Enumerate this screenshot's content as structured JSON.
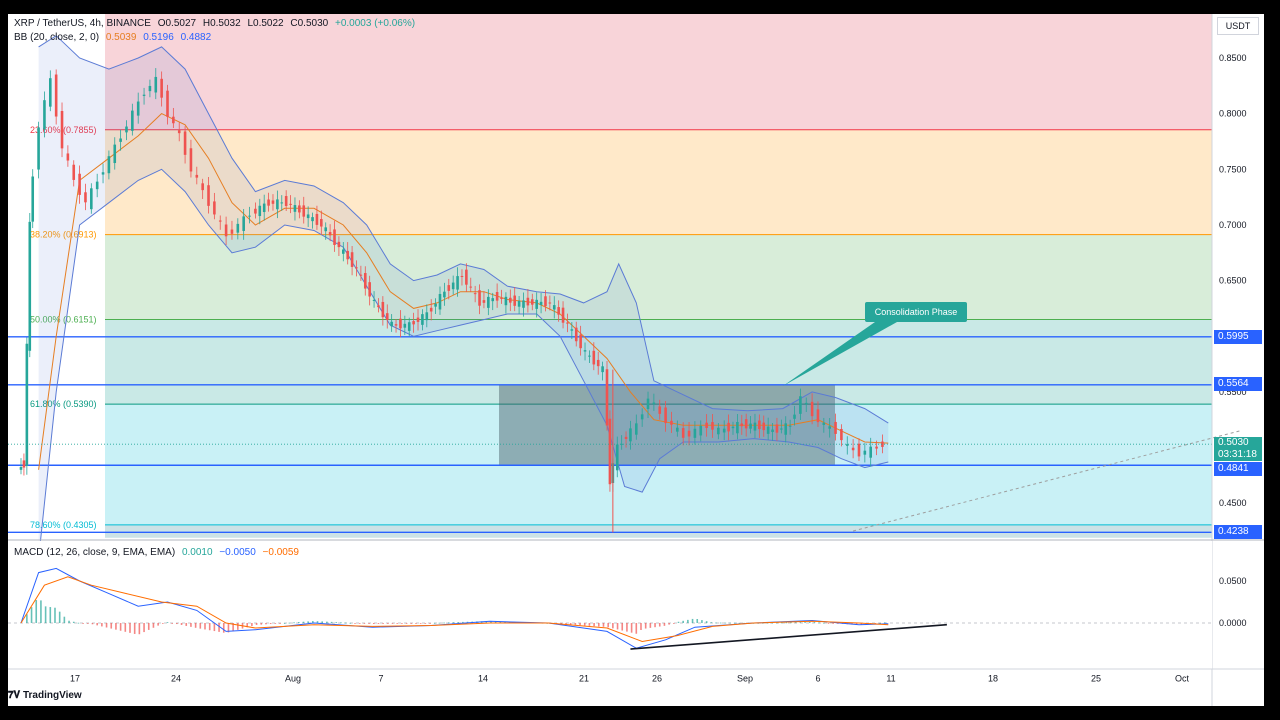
{
  "header": {
    "symbol_line": "XRP / TetherUS, 4h, BINANCE",
    "ohlc": {
      "o": "O0.5027",
      "h": "H0.5032",
      "l": "L0.5022",
      "c": "C0.5030",
      "chg": "+0.0003 (+0.06%)"
    },
    "bb_label": "BB (20, close, 2, 0)",
    "bb_values": [
      "0.5039",
      "0.5196",
      "0.4882"
    ],
    "macd_label": "MACD (12, 26, close, 9, EMA, EMA)",
    "macd_values": [
      "0.0010",
      "−0.0050",
      "−0.0059"
    ]
  },
  "unit": "USDT",
  "annotation": "Consolidation Phase",
  "brand": "TradingView",
  "current_price": {
    "value": "0.5030",
    "countdown": "03:31:18"
  },
  "colors": {
    "up": "#26a69a",
    "down": "#ef5350",
    "level": "#2962ff",
    "bb": "#5b7bd5",
    "basis": "#e67e22",
    "macd": "#2962ff",
    "signal": "#ff6d00"
  },
  "chart_data": {
    "type": "line",
    "x_ticks": [
      "17",
      "24",
      "Aug",
      "7",
      "14",
      "21",
      "26",
      "Sep",
      "6",
      "11",
      "18",
      "25",
      "Oct"
    ],
    "price_ticks": [
      "0.8500",
      "0.8000",
      "0.7500",
      "0.7000",
      "0.6500",
      "0.6000",
      "0.5500",
      "0.4500"
    ],
    "macd_ticks": [
      "0.0500",
      "0.0000"
    ],
    "fib_levels": [
      {
        "label": "23.60% (0.7855)",
        "value": 0.7855,
        "color": "#f23645"
      },
      {
        "label": "38.20% (0.6913)",
        "value": 0.6913,
        "color": "#ff9800"
      },
      {
        "label": "50.00% (0.6151)",
        "value": 0.6151,
        "color": "#4caf50"
      },
      {
        "label": "61.80% (0.5390)",
        "value": 0.539,
        "color": "#089981"
      },
      {
        "label": "78.60% (0.4305)",
        "value": 0.4305,
        "color": "#00bcd4"
      }
    ],
    "horizontal_levels": [
      "0.5995",
      "0.5564",
      "0.4841",
      "0.4238"
    ],
    "consolidation_box": {
      "price_top": 0.5564,
      "price_bottom": 0.4841
    },
    "price_path": [
      [
        0,
        0.48
      ],
      [
        0.1,
        0.485
      ],
      [
        0.2,
        0.7
      ],
      [
        0.4,
        0.79
      ],
      [
        0.6,
        0.83
      ],
      [
        0.8,
        0.77
      ],
      [
        1.0,
        0.74
      ],
      [
        1.2,
        0.72
      ],
      [
        1.4,
        0.74
      ],
      [
        1.6,
        0.76
      ],
      [
        1.8,
        0.78
      ],
      [
        2.0,
        0.8
      ],
      [
        2.2,
        0.82
      ],
      [
        2.4,
        0.83
      ],
      [
        2.6,
        0.8
      ],
      [
        2.8,
        0.78
      ],
      [
        3.0,
        0.75
      ],
      [
        3.2,
        0.73
      ],
      [
        3.4,
        0.71
      ],
      [
        3.6,
        0.69
      ],
      [
        3.8,
        0.7
      ],
      [
        4.0,
        0.71
      ],
      [
        4.3,
        0.72
      ],
      [
        4.6,
        0.72
      ],
      [
        4.9,
        0.71
      ],
      [
        5.2,
        0.7
      ],
      [
        5.5,
        0.68
      ],
      [
        5.8,
        0.66
      ],
      [
        6.1,
        0.63
      ],
      [
        6.4,
        0.61
      ],
      [
        6.7,
        0.61
      ],
      [
        7.0,
        0.62
      ],
      [
        7.3,
        0.64
      ],
      [
        7.6,
        0.655
      ],
      [
        7.9,
        0.63
      ],
      [
        8.2,
        0.635
      ],
      [
        8.5,
        0.63
      ],
      [
        8.8,
        0.63
      ],
      [
        9.1,
        0.63
      ],
      [
        9.4,
        0.61
      ],
      [
        9.7,
        0.585
      ],
      [
        10.0,
        0.57
      ],
      [
        10.1,
        0.47
      ],
      [
        10.25,
        0.5
      ],
      [
        10.4,
        0.51
      ],
      [
        10.6,
        0.52
      ],
      [
        10.8,
        0.545
      ],
      [
        11.0,
        0.53
      ],
      [
        11.2,
        0.52
      ],
      [
        11.4,
        0.51
      ],
      [
        11.6,
        0.515
      ],
      [
        11.8,
        0.52
      ],
      [
        12.0,
        0.515
      ],
      [
        12.3,
        0.52
      ],
      [
        12.6,
        0.52
      ],
      [
        12.9,
        0.515
      ],
      [
        13.2,
        0.52
      ],
      [
        13.4,
        0.545
      ],
      [
        13.6,
        0.53
      ],
      [
        13.8,
        0.52
      ],
      [
        14.0,
        0.515
      ],
      [
        14.2,
        0.5
      ],
      [
        14.4,
        0.495
      ],
      [
        14.6,
        0.498
      ],
      [
        14.8,
        0.503
      ]
    ],
    "bb_upper": [
      [
        0.3,
        0.86
      ],
      [
        0.6,
        0.87
      ],
      [
        1.0,
        0.85
      ],
      [
        1.5,
        0.84
      ],
      [
        2.0,
        0.85
      ],
      [
        2.4,
        0.86
      ],
      [
        2.8,
        0.84
      ],
      [
        3.2,
        0.8
      ],
      [
        3.6,
        0.76
      ],
      [
        4.0,
        0.73
      ],
      [
        4.5,
        0.74
      ],
      [
        5.0,
        0.735
      ],
      [
        5.5,
        0.72
      ],
      [
        5.9,
        0.7
      ],
      [
        6.3,
        0.665
      ],
      [
        6.7,
        0.65
      ],
      [
        7.1,
        0.655
      ],
      [
        7.5,
        0.665
      ],
      [
        7.9,
        0.66
      ],
      [
        8.3,
        0.645
      ],
      [
        8.8,
        0.64
      ],
      [
        9.2,
        0.638
      ],
      [
        9.6,
        0.63
      ],
      [
        10.0,
        0.64
      ],
      [
        10.2,
        0.665
      ],
      [
        10.5,
        0.63
      ],
      [
        10.8,
        0.56
      ],
      [
        11.2,
        0.55
      ],
      [
        11.8,
        0.535
      ],
      [
        12.4,
        0.533
      ],
      [
        13.0,
        0.535
      ],
      [
        13.5,
        0.55
      ],
      [
        13.9,
        0.545
      ],
      [
        14.4,
        0.535
      ],
      [
        14.8,
        0.522
      ]
    ],
    "bb_lower": [
      [
        0.3,
        0.4
      ],
      [
        0.6,
        0.55
      ],
      [
        1.0,
        0.7
      ],
      [
        1.5,
        0.72
      ],
      [
        2.0,
        0.74
      ],
      [
        2.4,
        0.75
      ],
      [
        2.8,
        0.73
      ],
      [
        3.2,
        0.7
      ],
      [
        3.6,
        0.675
      ],
      [
        4.0,
        0.68
      ],
      [
        4.5,
        0.7
      ],
      [
        5.0,
        0.695
      ],
      [
        5.5,
        0.68
      ],
      [
        5.9,
        0.645
      ],
      [
        6.3,
        0.61
      ],
      [
        6.7,
        0.6
      ],
      [
        7.1,
        0.605
      ],
      [
        7.5,
        0.61
      ],
      [
        7.9,
        0.615
      ],
      [
        8.3,
        0.62
      ],
      [
        8.8,
        0.62
      ],
      [
        9.2,
        0.6
      ],
      [
        9.6,
        0.56
      ],
      [
        10.0,
        0.52
      ],
      [
        10.3,
        0.465
      ],
      [
        10.6,
        0.46
      ],
      [
        10.9,
        0.49
      ],
      [
        11.3,
        0.505
      ],
      [
        11.9,
        0.505
      ],
      [
        12.5,
        0.508
      ],
      [
        13.1,
        0.505
      ],
      [
        13.6,
        0.5
      ],
      [
        14.0,
        0.49
      ],
      [
        14.4,
        0.482
      ],
      [
        14.8,
        0.487
      ]
    ],
    "bb_basis": [
      [
        0.3,
        0.48
      ],
      [
        0.6,
        0.6
      ],
      [
        1.0,
        0.74
      ],
      [
        1.5,
        0.76
      ],
      [
        2.0,
        0.78
      ],
      [
        2.4,
        0.8
      ],
      [
        2.8,
        0.79
      ],
      [
        3.2,
        0.76
      ],
      [
        3.6,
        0.72
      ],
      [
        4.0,
        0.7
      ],
      [
        4.5,
        0.715
      ],
      [
        5.0,
        0.715
      ],
      [
        5.5,
        0.7
      ],
      [
        5.9,
        0.675
      ],
      [
        6.3,
        0.64
      ],
      [
        6.7,
        0.625
      ],
      [
        7.1,
        0.63
      ],
      [
        7.5,
        0.64
      ],
      [
        7.9,
        0.64
      ],
      [
        8.3,
        0.633
      ],
      [
        8.8,
        0.63
      ],
      [
        9.2,
        0.62
      ],
      [
        9.6,
        0.6
      ],
      [
        10.0,
        0.58
      ],
      [
        10.4,
        0.55
      ],
      [
        10.8,
        0.525
      ],
      [
        11.3,
        0.52
      ],
      [
        11.9,
        0.52
      ],
      [
        12.5,
        0.52
      ],
      [
        13.1,
        0.52
      ],
      [
        13.6,
        0.525
      ],
      [
        14.0,
        0.515
      ],
      [
        14.4,
        0.505
      ],
      [
        14.8,
        0.504
      ]
    ],
    "macd_line": [
      [
        0,
        0.0
      ],
      [
        0.3,
        0.06
      ],
      [
        0.6,
        0.065
      ],
      [
        1.0,
        0.05
      ],
      [
        1.5,
        0.035
      ],
      [
        2.0,
        0.02
      ],
      [
        2.5,
        0.025
      ],
      [
        3.0,
        0.015
      ],
      [
        3.5,
        -0.01
      ],
      [
        4.0,
        -0.008
      ],
      [
        5.0,
        0.0
      ],
      [
        6.0,
        -0.005
      ],
      [
        7.0,
        -0.003
      ],
      [
        8.0,
        0.002
      ],
      [
        9.0,
        0.0
      ],
      [
        10.0,
        -0.01
      ],
      [
        10.5,
        -0.03
      ],
      [
        11.0,
        -0.02
      ],
      [
        11.5,
        -0.005
      ],
      [
        12.5,
        0.0
      ],
      [
        13.5,
        0.003
      ],
      [
        14.3,
        -0.002
      ],
      [
        14.8,
        -0.001
      ]
    ],
    "signal_line": [
      [
        0,
        0.0
      ],
      [
        0.4,
        0.045
      ],
      [
        0.8,
        0.055
      ],
      [
        1.2,
        0.045
      ],
      [
        1.8,
        0.035
      ],
      [
        2.4,
        0.025
      ],
      [
        3.0,
        0.02
      ],
      [
        3.5,
        0.0
      ],
      [
        4.0,
        -0.006
      ],
      [
        5.0,
        -0.002
      ],
      [
        6.0,
        -0.004
      ],
      [
        7.0,
        -0.003
      ],
      [
        8.0,
        0.0
      ],
      [
        9.0,
        0.0
      ],
      [
        10.0,
        -0.006
      ],
      [
        10.6,
        -0.022
      ],
      [
        11.2,
        -0.015
      ],
      [
        11.8,
        -0.004
      ],
      [
        12.5,
        0.0
      ],
      [
        13.5,
        0.002
      ],
      [
        14.3,
        0.0
      ],
      [
        14.8,
        -0.002
      ]
    ],
    "divergence_line": {
      "from": [
        10.4,
        -0.031
      ],
      "to": [
        15.8,
        -0.002
      ]
    },
    "trend_line": {
      "from": [
        14.2,
        0.425
      ],
      "to": [
        20.8,
        0.515
      ]
    }
  }
}
